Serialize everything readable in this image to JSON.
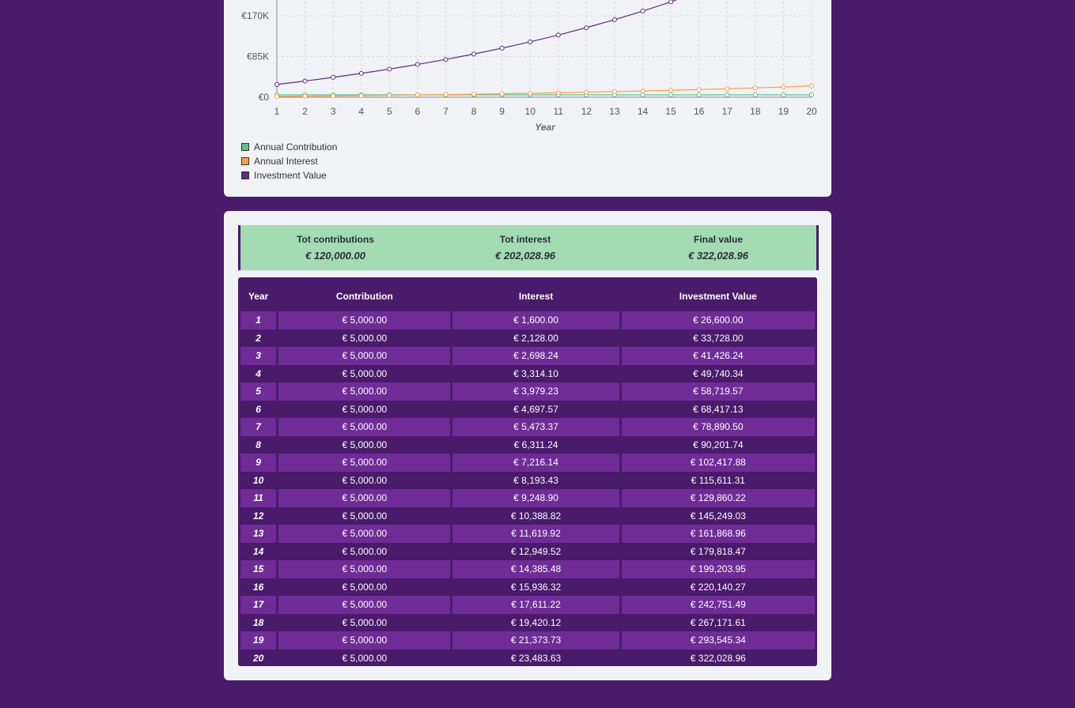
{
  "chart_data": {
    "type": "line",
    "x": [
      1,
      2,
      3,
      4,
      5,
      6,
      7,
      8,
      9,
      10,
      11,
      12,
      13,
      14,
      15,
      16,
      17,
      18,
      19,
      20
    ],
    "xlabel": "Year",
    "ylabel": "",
    "y_ticks": [
      "€0",
      "€85K",
      "€170K"
    ],
    "y_tick_values": [
      0,
      85000,
      170000
    ],
    "series": [
      {
        "name": "Annual Contribution",
        "color": "#5cc48a",
        "values": [
          5000,
          5000,
          5000,
          5000,
          5000,
          5000,
          5000,
          5000,
          5000,
          5000,
          5000,
          5000,
          5000,
          5000,
          5000,
          5000,
          5000,
          5000,
          5000,
          5000
        ]
      },
      {
        "name": "Annual Interest",
        "color": "#f6a04d",
        "values": [
          1600,
          2128,
          2698.24,
          3314.1,
          3979.23,
          4697.57,
          5473.37,
          6311.24,
          7216.14,
          8193.43,
          9248.9,
          10388.82,
          11619.92,
          12949.52,
          14385.48,
          15936.32,
          17611.22,
          19420.12,
          21373.73,
          23483.63
        ]
      },
      {
        "name": "Investment Value",
        "color": "#5b2a7e",
        "values": [
          26600,
          33728,
          41426.24,
          49740.34,
          58719.57,
          68417.13,
          78890.5,
          90201.74,
          102417.88,
          115611.31,
          129860.22,
          145249.03,
          161868.96,
          179818.47,
          199203.95,
          220140.27,
          242751.49,
          267171.61,
          293545.34,
          322028.96
        ]
      }
    ],
    "legend": "bottom-left",
    "grid": true
  },
  "summary": {
    "contrib_label": "Tot contributions",
    "contrib_value": "€ 120,000.00",
    "interest_label": "Tot interest",
    "interest_value": "€ 202,028.96",
    "final_label": "Final value",
    "final_value": "€ 322,028.96"
  },
  "table": {
    "headers": [
      "Year",
      "Contribution",
      "Interest",
      "Investment Value"
    ],
    "rows": [
      [
        "1",
        "€ 5,000.00",
        "€ 1,600.00",
        "€ 26,600.00"
      ],
      [
        "2",
        "€ 5,000.00",
        "€ 2,128.00",
        "€ 33,728.00"
      ],
      [
        "3",
        "€ 5,000.00",
        "€ 2,698.24",
        "€ 41,426.24"
      ],
      [
        "4",
        "€ 5,000.00",
        "€ 3,314.10",
        "€ 49,740.34"
      ],
      [
        "5",
        "€ 5,000.00",
        "€ 3,979.23",
        "€ 58,719.57"
      ],
      [
        "6",
        "€ 5,000.00",
        "€ 4,697.57",
        "€ 68,417.13"
      ],
      [
        "7",
        "€ 5,000.00",
        "€ 5,473.37",
        "€ 78,890.50"
      ],
      [
        "8",
        "€ 5,000.00",
        "€ 6,311.24",
        "€ 90,201.74"
      ],
      [
        "9",
        "€ 5,000.00",
        "€ 7,216.14",
        "€ 102,417.88"
      ],
      [
        "10",
        "€ 5,000.00",
        "€ 8,193.43",
        "€ 115,611.31"
      ],
      [
        "11",
        "€ 5,000.00",
        "€ 9,248.90",
        "€ 129,860.22"
      ],
      [
        "12",
        "€ 5,000.00",
        "€ 10,388.82",
        "€ 145,249.03"
      ],
      [
        "13",
        "€ 5,000.00",
        "€ 11,619.92",
        "€ 161,868.96"
      ],
      [
        "14",
        "€ 5,000.00",
        "€ 12,949.52",
        "€ 179,818.47"
      ],
      [
        "15",
        "€ 5,000.00",
        "€ 14,385.48",
        "€ 199,203.95"
      ],
      [
        "16",
        "€ 5,000.00",
        "€ 15,936.32",
        "€ 220,140.27"
      ],
      [
        "17",
        "€ 5,000.00",
        "€ 17,611.22",
        "€ 242,751.49"
      ],
      [
        "18",
        "€ 5,000.00",
        "€ 19,420.12",
        "€ 267,171.61"
      ],
      [
        "19",
        "€ 5,000.00",
        "€ 21,373.73",
        "€ 293,545.34"
      ],
      [
        "20",
        "€ 5,000.00",
        "€ 23,483.63",
        "€ 322,028.96"
      ]
    ]
  }
}
